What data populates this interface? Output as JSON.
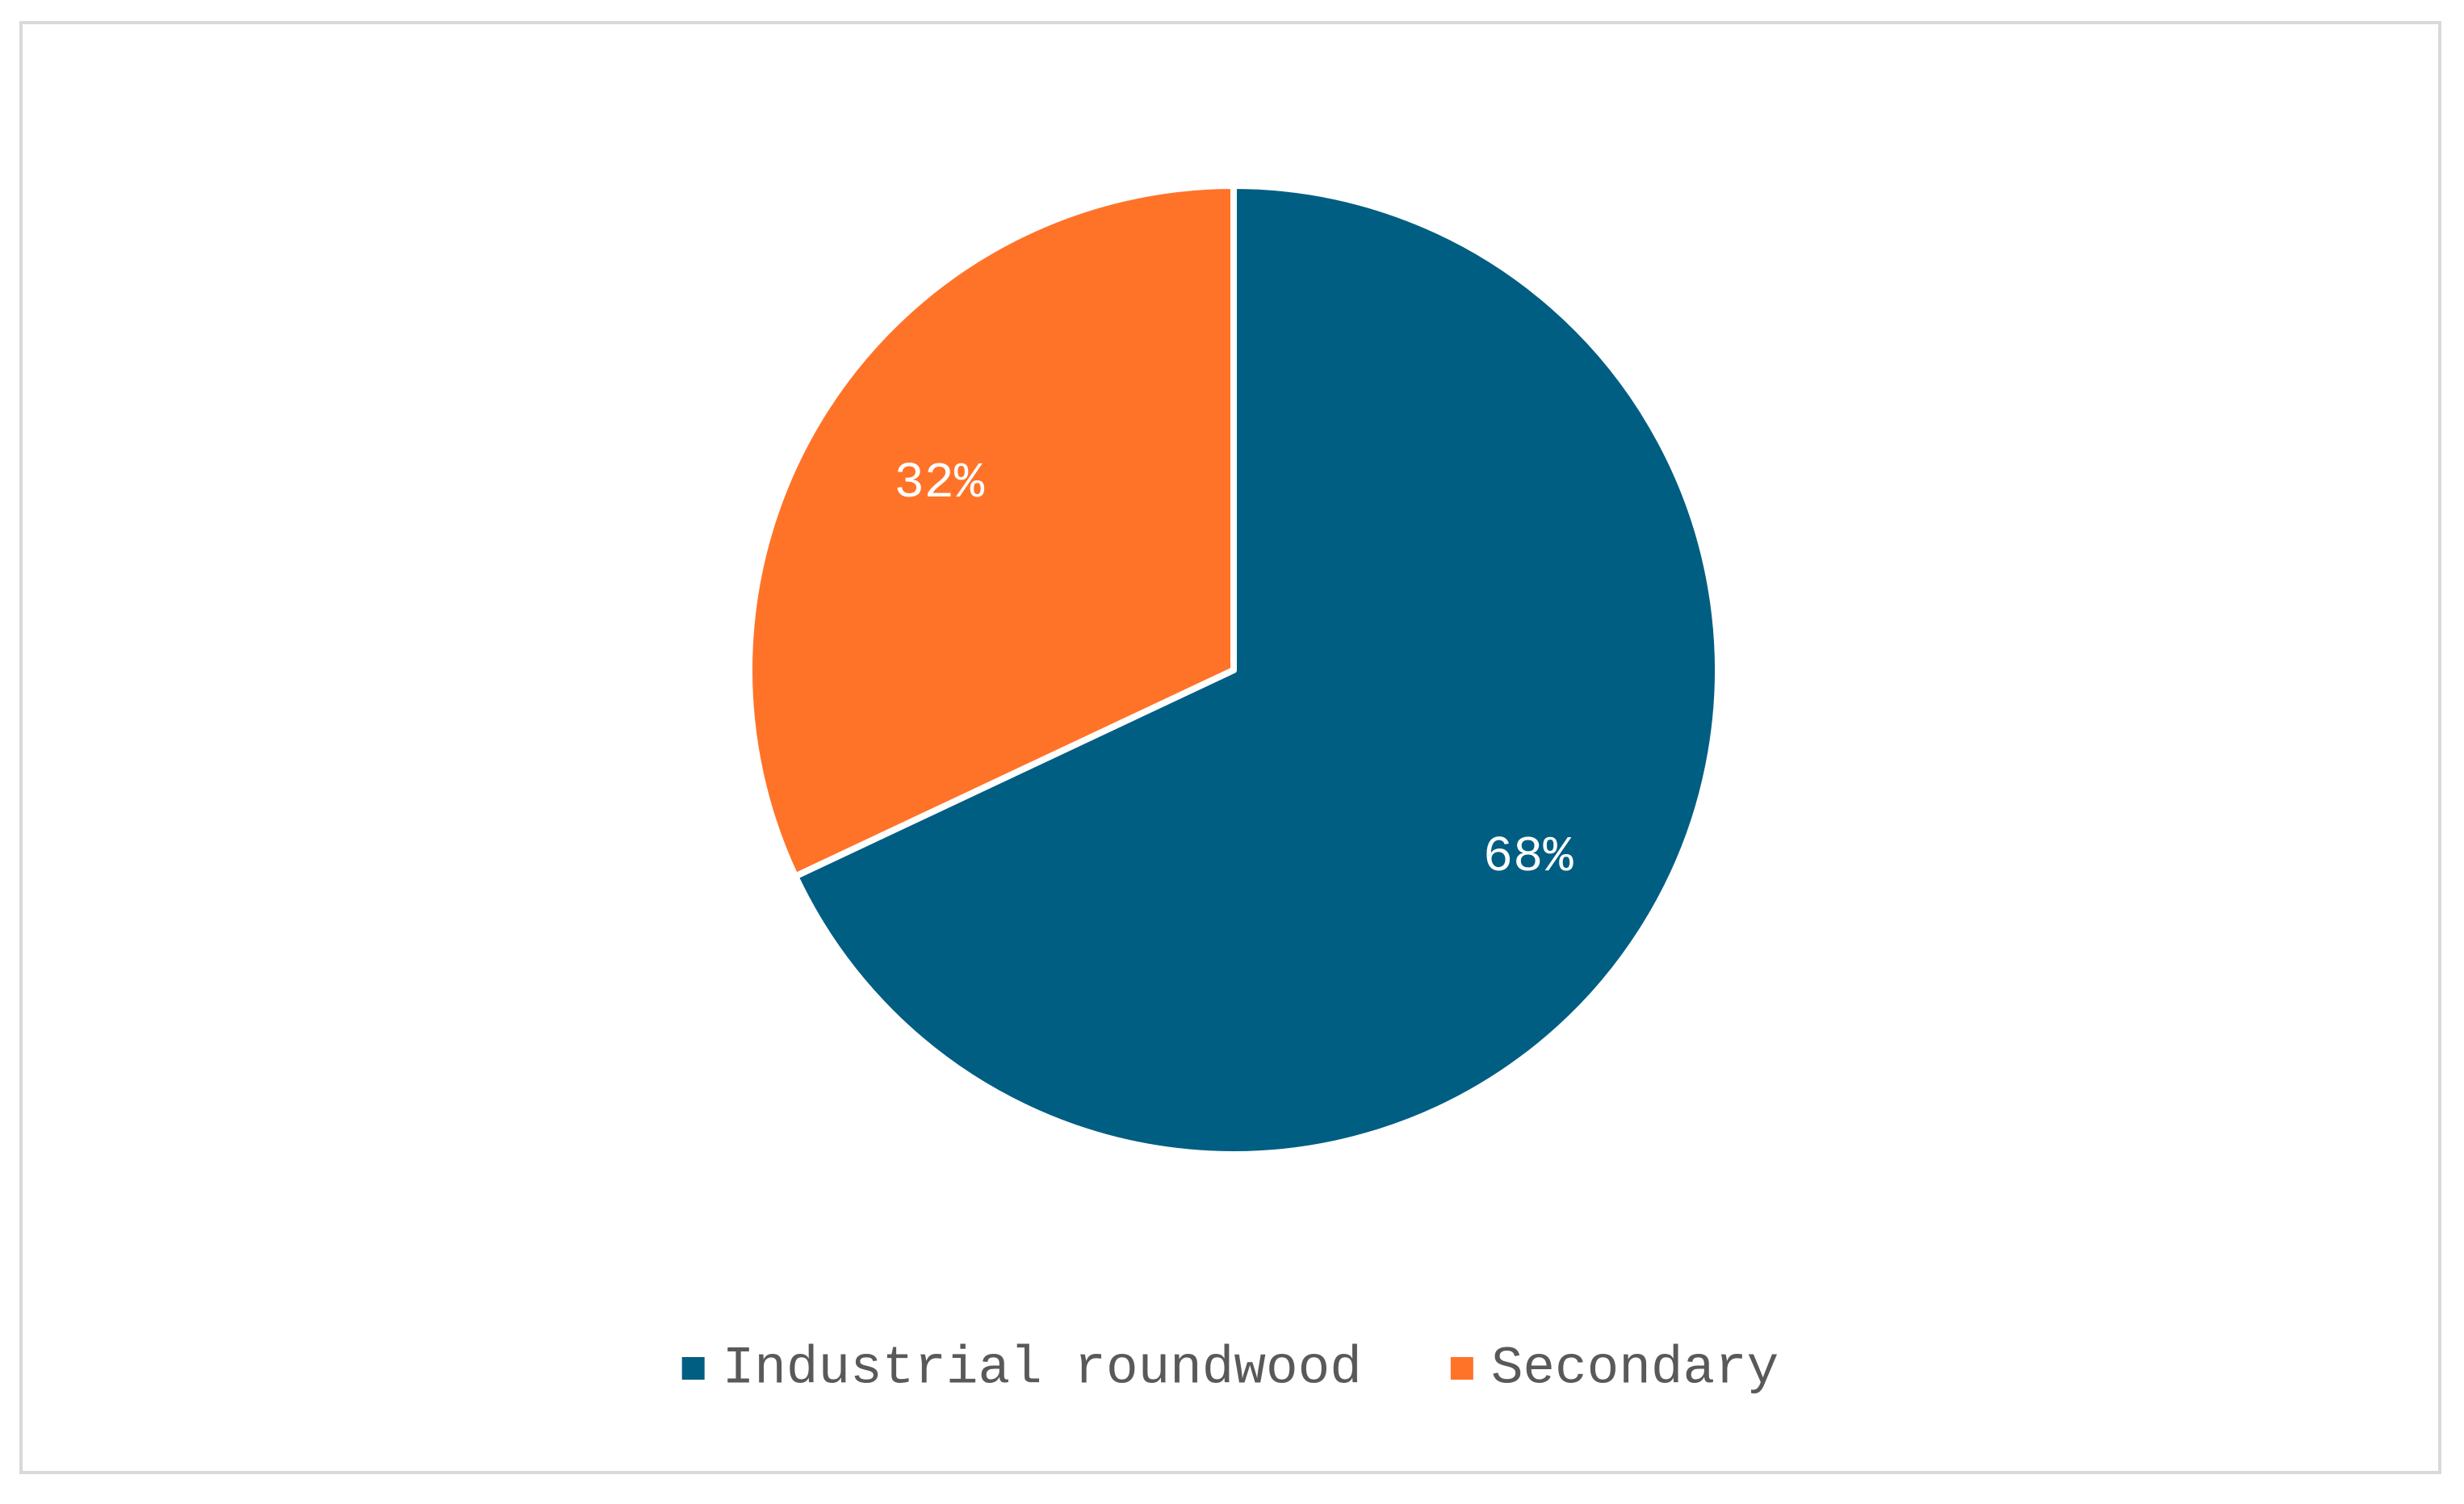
{
  "chart_data": {
    "type": "pie",
    "categories": [
      "Industrial roundwood",
      "Secondary"
    ],
    "values": [
      68,
      32
    ],
    "labels": [
      "68%",
      "32%"
    ],
    "colors": [
      "#005E83",
      "#FF7329"
    ],
    "legend_position": "bottom",
    "title": ""
  }
}
